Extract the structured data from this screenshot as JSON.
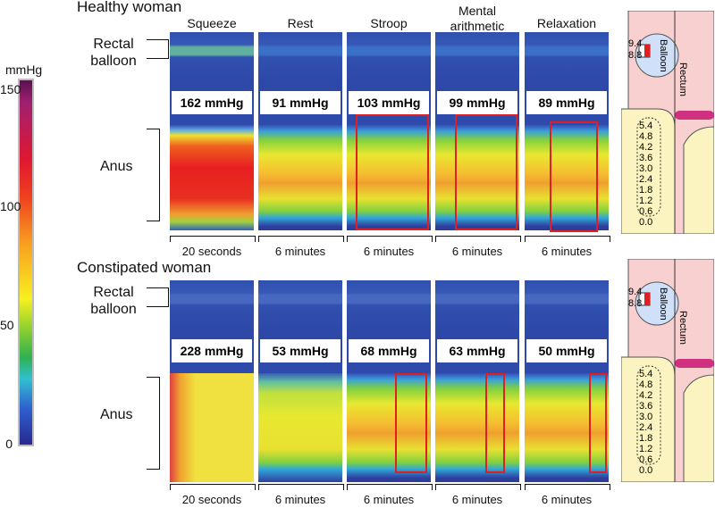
{
  "colorbar": {
    "unit": "mmHg",
    "ticks": [
      "150",
      "100",
      "50",
      "0"
    ]
  },
  "panels": [
    {
      "title": "Healthy woman",
      "balloon_label": "Rectal balloon",
      "anus_label": "Anus",
      "columns": [
        {
          "label": "Squeeze",
          "pressure": "162 mmHg",
          "duration": "20 seconds"
        },
        {
          "label": "Rest",
          "pressure": "91 mmHg",
          "duration": "6 minutes"
        },
        {
          "label": "Stroop",
          "pressure": "103 mmHg",
          "duration": "6 minutes"
        },
        {
          "label": "Mental arithmetic",
          "pressure": "99 mmHg",
          "duration": "6 minutes"
        },
        {
          "label": "Relaxation",
          "pressure": "89 mmHg",
          "duration": "6 minutes"
        }
      ]
    },
    {
      "title": "Constipated woman",
      "balloon_label": "Rectal balloon",
      "anus_label": "Anus",
      "columns": [
        {
          "label": null,
          "pressure": "228 mmHg",
          "duration": "20 seconds"
        },
        {
          "label": null,
          "pressure": "53 mmHg",
          "duration": "6 minutes"
        },
        {
          "label": null,
          "pressure": "68 mmHg",
          "duration": "6 minutes"
        },
        {
          "label": null,
          "pressure": "63 mmHg",
          "duration": "6 minutes"
        },
        {
          "label": null,
          "pressure": "50 mmHg",
          "duration": "6 minutes"
        }
      ]
    }
  ],
  "diagram": {
    "balloon": "Balloon",
    "rectum": "Rectum",
    "balloon_depths": [
      "9.4",
      "8.8"
    ],
    "depths": [
      "5.4",
      "4.8",
      "4.2",
      "3.6",
      "3.0",
      "2.4",
      "1.8",
      "1.2",
      "0.6",
      "0.0"
    ]
  }
}
